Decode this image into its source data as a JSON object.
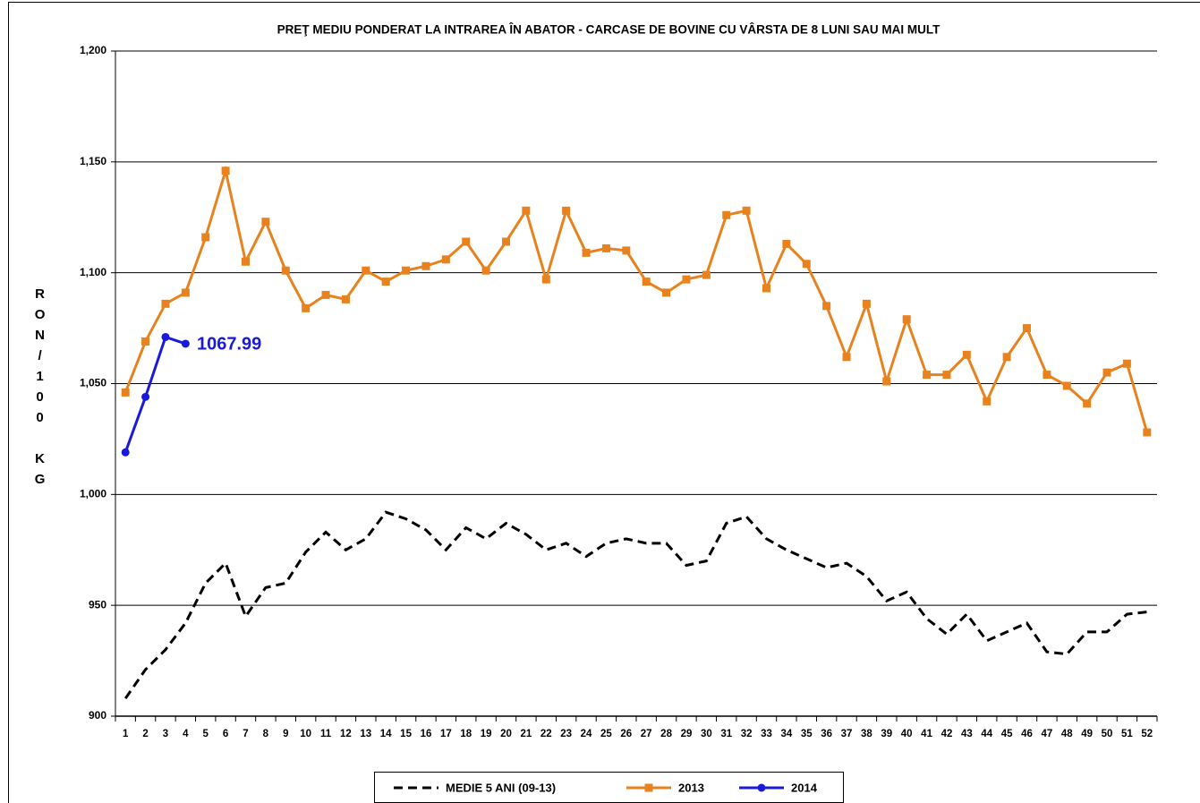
{
  "chart_data": {
    "type": "line",
    "title": "PREŢ MEDIU PONDERAT LA INTRAREA ÎN ABATOR - CARCASE  DE BOVINE CU VÂRSTA DE  8 LUNI SAU MAI MULT",
    "y_label": "RON/100 KG",
    "annotation": "1067.99",
    "categories": [
      "1",
      "2",
      "3",
      "4",
      "5",
      "6",
      "7",
      "8",
      "9",
      "10",
      "11",
      "12",
      "13",
      "14",
      "15",
      "16",
      "17",
      "18",
      "19",
      "20",
      "21",
      "22",
      "23",
      "24",
      "25",
      "26",
      "27",
      "28",
      "29",
      "30",
      "31",
      "32",
      "33",
      "34",
      "35",
      "36",
      "37",
      "38",
      "39",
      "40",
      "41",
      "42",
      "43",
      "44",
      "45",
      "46",
      "47",
      "48",
      "49",
      "50",
      "51",
      "52"
    ],
    "ylim": [
      900,
      1200
    ],
    "yticks": [
      900,
      950,
      {
        "value": 1000,
        "label": "1,000"
      },
      {
        "value": 1050,
        "label": "1,050"
      },
      {
        "value": 1100,
        "label": "1,100"
      },
      {
        "value": 1150,
        "label": "1,150"
      },
      {
        "value": 1200,
        "label": "1,200"
      }
    ],
    "grid": true,
    "legend": "bottom",
    "series": [
      {
        "name": "MEDIE 5 ANI (09-13)",
        "color": "#000000",
        "dashed": true,
        "marker": "none",
        "values": [
          908,
          921,
          930,
          942,
          960,
          969,
          945,
          958,
          960,
          974,
          983,
          975,
          980,
          992,
          989,
          984,
          975,
          985,
          980,
          987,
          982,
          975,
          978,
          972,
          978,
          980,
          978,
          978,
          968,
          970,
          987,
          990,
          980,
          975,
          971,
          967,
          969,
          963,
          952,
          956,
          944,
          937,
          946,
          934,
          938,
          942,
          929,
          928,
          938,
          938,
          946,
          947
        ]
      },
      {
        "name": "2013",
        "color": "#e8821e",
        "dashed": false,
        "marker": "square",
        "values": [
          1046,
          1069,
          1086,
          1091,
          1116,
          1146,
          1105,
          1123,
          1101,
          1084,
          1090,
          1088,
          1101,
          1096,
          1101,
          1103,
          1106,
          1114,
          1101,
          1114,
          1128,
          1097,
          1128,
          1109,
          1111,
          1110,
          1096,
          1091,
          1097,
          1099,
          1126,
          1128,
          1093,
          1113,
          1104,
          1085,
          1062,
          1086,
          1051,
          1079,
          1054,
          1054,
          1063,
          1042,
          1062,
          1075,
          1054,
          1049,
          1041,
          1055,
          1059,
          1028
        ]
      },
      {
        "name": "2014",
        "color": "#1a1adb",
        "dashed": false,
        "marker": "circle",
        "values": [
          1019,
          1044,
          1071,
          1067.99,
          null,
          null,
          null,
          null,
          null,
          null,
          null,
          null,
          null,
          null,
          null,
          null,
          null,
          null,
          null,
          null,
          null,
          null,
          null,
          null,
          null,
          null,
          null,
          null,
          null,
          null,
          null,
          null,
          null,
          null,
          null,
          null,
          null,
          null,
          null,
          null,
          null,
          null,
          null,
          null,
          null,
          null,
          null,
          null,
          null,
          null,
          null,
          null
        ]
      }
    ]
  }
}
